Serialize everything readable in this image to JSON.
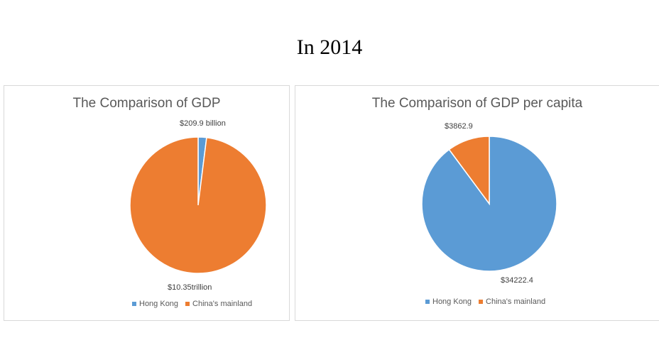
{
  "page": {
    "title": "In 2014"
  },
  "colors": {
    "hong_kong": "#5b9bd5",
    "mainland": "#ed7d31"
  },
  "chart_data": [
    {
      "type": "pie",
      "title": "The Comparison of GDP",
      "labels": [
        "Hong Kong",
        "China's mainland"
      ],
      "values": [
        209.9,
        10350
      ],
      "unit": "billion USD",
      "data_labels": [
        "$209.9 billion",
        "$10.35trillion"
      ],
      "legend": [
        "Hong Kong",
        "China's mainland"
      ],
      "legend_position": "bottom"
    },
    {
      "type": "pie",
      "title": "The Comparison of GDP per capita",
      "labels": [
        "Hong Kong",
        "China's mainland"
      ],
      "values": [
        34222.4,
        3862.9
      ],
      "unit": "USD",
      "data_labels": [
        "$34222.4",
        "$3862.9"
      ],
      "legend": [
        "Hong Kong",
        "China's mainland"
      ],
      "legend_position": "bottom"
    }
  ]
}
